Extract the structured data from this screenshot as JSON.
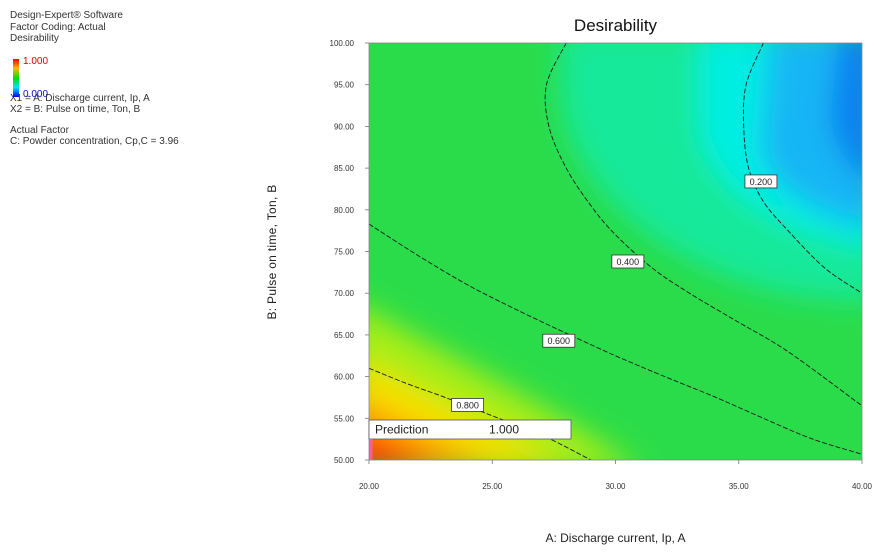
{
  "info": {
    "software": "Design-Expert® Software",
    "coding": "Factor Coding: Actual",
    "response": "Desirability",
    "scale_max": "1.000",
    "scale_min": "0.000",
    "x1": "X1 = A: Discharge current, Ip, A",
    "x2": "X2 = B: Pulse on time, Ton, B",
    "actual_factor_heading": "Actual Factor",
    "actual_factor": "C: Powder concentration, Cp,C = 3.96"
  },
  "chart_data": {
    "type": "heatmap",
    "title": "Desirability",
    "xlabel": "A: Discharge current, Ip, A",
    "ylabel": "B: Pulse on time, Ton, B",
    "xlim": [
      20,
      40
    ],
    "ylim": [
      50,
      100
    ],
    "x_ticks": [
      "20.00",
      "25.00",
      "30.00",
      "35.00",
      "40.00"
    ],
    "y_ticks": [
      "50.00",
      "55.00",
      "60.00",
      "65.00",
      "70.00",
      "75.00",
      "80.00",
      "85.00",
      "90.00",
      "95.00",
      "100.00"
    ],
    "contours": [
      {
        "level": 0.8,
        "label": "0.800",
        "points": [
          [
            20,
            61
          ],
          [
            21.5,
            59.2
          ],
          [
            23,
            57.6
          ],
          [
            25,
            55.3
          ],
          [
            27,
            53
          ],
          [
            29,
            50
          ]
        ]
      },
      {
        "level": 0.6,
        "label": "0.600",
        "points": [
          [
            20,
            78.3
          ],
          [
            22,
            74.5
          ],
          [
            24,
            71
          ],
          [
            26,
            68
          ],
          [
            28,
            65.2
          ],
          [
            30,
            62.5
          ],
          [
            32,
            60
          ],
          [
            34,
            57.6
          ],
          [
            36,
            55
          ],
          [
            38,
            52.5
          ],
          [
            40,
            50.7
          ]
        ]
      },
      {
        "level": 0.4,
        "label": "0.400",
        "points": [
          [
            28,
            100
          ],
          [
            27.2,
            95
          ],
          [
            27.3,
            90
          ],
          [
            28,
            85
          ],
          [
            29,
            80.5
          ],
          [
            30,
            77
          ],
          [
            31.5,
            73
          ],
          [
            33,
            70
          ],
          [
            35,
            66.5
          ],
          [
            37,
            63
          ],
          [
            40,
            56.5
          ]
        ]
      },
      {
        "level": 0.2,
        "label": "0.200",
        "points": [
          [
            36,
            100
          ],
          [
            35.3,
            95
          ],
          [
            35.2,
            90
          ],
          [
            35.4,
            85
          ],
          [
            36,
            81
          ],
          [
            37,
            77.5
          ],
          [
            38.5,
            73
          ],
          [
            40,
            70
          ]
        ]
      }
    ],
    "label_positions": [
      {
        "label": "0.800",
        "x": 24,
        "y": 56.6
      },
      {
        "label": "0.600",
        "x": 27.7,
        "y": 64.3
      },
      {
        "label": "0.400",
        "x": 30.5,
        "y": 73.8
      },
      {
        "label": "0.200",
        "x": 35.9,
        "y": 83.4
      }
    ],
    "prediction": {
      "label": "Prediction",
      "value": "1.000",
      "x": 20,
      "y": 50
    },
    "colorscale": {
      "min": 0.0,
      "max": 1.0,
      "low_color": "#0000ff",
      "high_color": "#ff0000"
    }
  }
}
